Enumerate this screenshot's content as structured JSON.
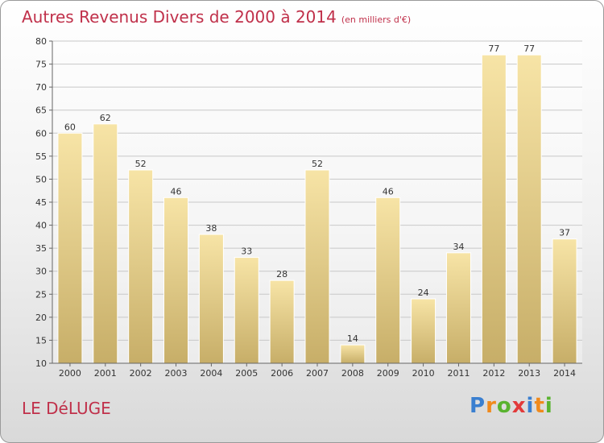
{
  "title": "Autres Revenus Divers de 2000 à 2014",
  "title_unit": "(en milliers d'€)",
  "commune": "LE DéLUGE",
  "logo": {
    "letters": [
      "P",
      "r",
      "o",
      "x",
      "i",
      "t",
      "i"
    ],
    "colors": [
      "#3a7fd0",
      "#f08a1c",
      "#59b32f",
      "#e23a3a",
      "#3a7fd0",
      "#f08a1c",
      "#59b32f"
    ]
  },
  "colors": {
    "title": "#c0304a",
    "bar_light": "#f7e4a6",
    "bar_dark": "#c7ae68"
  },
  "chart_data": {
    "type": "bar",
    "title": "Autres Revenus Divers de 2000 à 2014",
    "categories": [
      "2000",
      "2001",
      "2002",
      "2003",
      "2004",
      "2005",
      "2006",
      "2007",
      "2008",
      "2009",
      "2010",
      "2011",
      "2012",
      "2013",
      "2014"
    ],
    "values": [
      60,
      62,
      52,
      46,
      38,
      33,
      28,
      52,
      14,
      46,
      24,
      34,
      77,
      77,
      37
    ],
    "ylim": [
      10,
      80
    ],
    "yticks": [
      10,
      15,
      20,
      25,
      30,
      35,
      40,
      45,
      50,
      55,
      60,
      65,
      70,
      75,
      80
    ],
    "grid": true
  }
}
